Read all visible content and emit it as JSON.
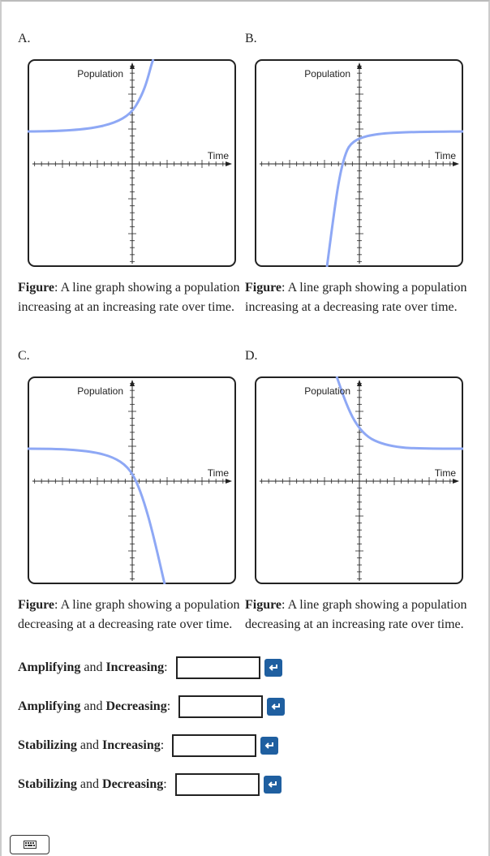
{
  "panels": [
    {
      "letter": "A.",
      "y_label": "Population",
      "x_label": "Time",
      "caption_bold": "Figure",
      "caption_text": ": A line graph showing a population increasing at an increasing rate over time."
    },
    {
      "letter": "B.",
      "y_label": "Population",
      "x_label": "Time",
      "caption_bold": "Figure",
      "caption_text": ": A line graph showing a population increasing at a decreasing rate over time."
    },
    {
      "letter": "C.",
      "y_label": "Population",
      "x_label": "Time",
      "caption_bold": "Figure",
      "caption_text": ": A line graph showing a population decreasing at a decreasing rate over time."
    },
    {
      "letter": "D.",
      "y_label": "Population",
      "x_label": "Time",
      "caption_bold": "Figure",
      "caption_text": ": A line graph showing a population decreasing at an increasing rate over time."
    }
  ],
  "answers": [
    {
      "term1": "Amplifying",
      "joiner": "and",
      "term2": "Increasing",
      "suffix": ":"
    },
    {
      "term1": "Amplifying",
      "joiner": "and",
      "term2": "Decreasing",
      "suffix": ":"
    },
    {
      "term1": "Stabilizing",
      "joiner": "and",
      "term2": "Increasing",
      "suffix": ":"
    },
    {
      "term1": "Stabilizing",
      "joiner": "and",
      "term2": "Decreasing",
      "suffix": ":"
    }
  ]
}
